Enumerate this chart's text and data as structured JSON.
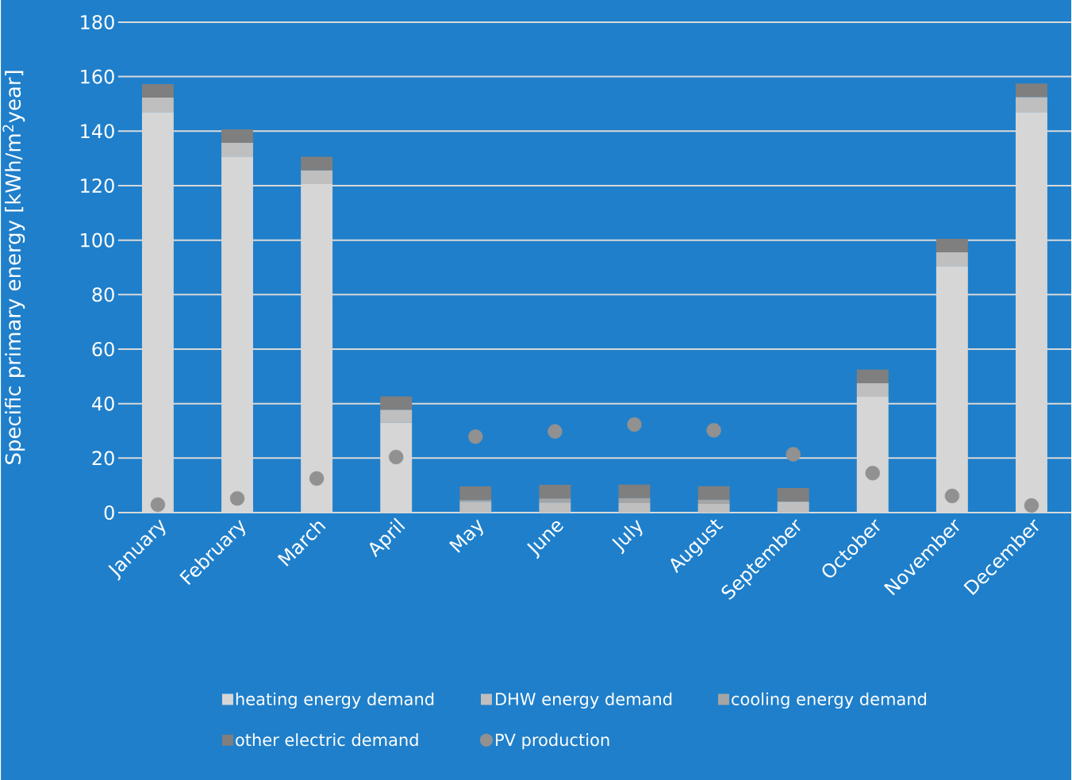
{
  "chart_data": {
    "type": "bar",
    "stacked": true,
    "ylabel": "Specific primary energy [kWh/m$^{2}$year]",
    "categories": [
      "January",
      "February",
      "March",
      "April",
      "May",
      "June",
      "July",
      "August",
      "September",
      "October",
      "November",
      "December"
    ],
    "series": [
      {
        "name": "heating energy demand",
        "color": "#d6d6d6",
        "values": [
          147,
          130.7,
          120.6,
          33,
          0,
          0,
          0,
          0,
          0,
          42.5,
          90.5,
          147
        ]
      },
      {
        "name": "DHW energy demand",
        "color": "#bfbfbf",
        "values": [
          5.3,
          5,
          5,
          4.7,
          4,
          3.7,
          3.5,
          3.2,
          4,
          5,
          5,
          5.5
        ]
      },
      {
        "name": "cooling energy demand",
        "color": "#a5a5a5",
        "values": [
          0,
          0,
          0,
          0,
          0.6,
          1.5,
          1.8,
          1.5,
          0,
          0,
          0,
          0
        ]
      },
      {
        "name": "other electric demand",
        "color": "#7f7f7f",
        "values": [
          5,
          5,
          5,
          5,
          5,
          5,
          5,
          5,
          5,
          5,
          5,
          5
        ]
      },
      {
        "name": "PV production",
        "type": "scatter",
        "marker": "circle",
        "color": "#919191",
        "values": [
          2.9,
          5.2,
          12.5,
          20.4,
          27.9,
          29.8,
          32.3,
          30.2,
          21.4,
          14.5,
          6.1,
          2.6
        ]
      }
    ],
    "ylim": [
      0,
      180
    ],
    "yticks": [
      0,
      20,
      40,
      60,
      80,
      100,
      120,
      140,
      160,
      180
    ],
    "grid": "y",
    "legend": "bottom"
  }
}
